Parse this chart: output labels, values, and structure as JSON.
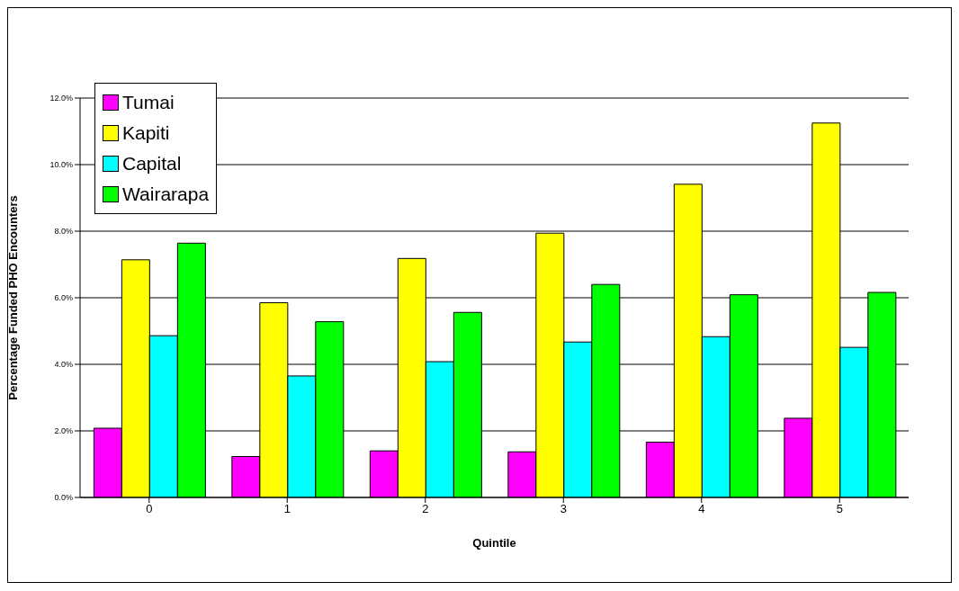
{
  "chart_data": {
    "type": "bar",
    "xlabel": "Quintile",
    "ylabel": "Percentage Funded PHO Encounters",
    "categories": [
      "0",
      "1",
      "2",
      "3",
      "4",
      "5"
    ],
    "series": [
      {
        "name": "Tumai",
        "color": "#ff00ff",
        "values": [
          2.08,
          1.23,
          1.4,
          1.37,
          1.66,
          2.38
        ]
      },
      {
        "name": "Kapiti",
        "color": "#ffff00",
        "values": [
          7.14,
          5.85,
          7.18,
          7.94,
          9.41,
          11.25
        ]
      },
      {
        "name": "Capital",
        "color": "#00ffff",
        "values": [
          4.86,
          3.65,
          4.08,
          4.67,
          4.83,
          4.51
        ]
      },
      {
        "name": "Wairarapa",
        "color": "#00ff00",
        "values": [
          7.64,
          5.28,
          5.56,
          6.4,
          6.09,
          6.16
        ]
      }
    ],
    "ylim": [
      0,
      12
    ],
    "yticks": [
      {
        "value": 0,
        "label": "0.0%"
      },
      {
        "value": 2,
        "label": "2.0%"
      },
      {
        "value": 4,
        "label": "4.0%"
      },
      {
        "value": 6,
        "label": "6.0%"
      },
      {
        "value": 8,
        "label": "8.0%"
      },
      {
        "value": 10,
        "label": "10.0%"
      },
      {
        "value": 12,
        "label": "12.0%"
      }
    ],
    "grid": "y",
    "legend": "top left"
  }
}
